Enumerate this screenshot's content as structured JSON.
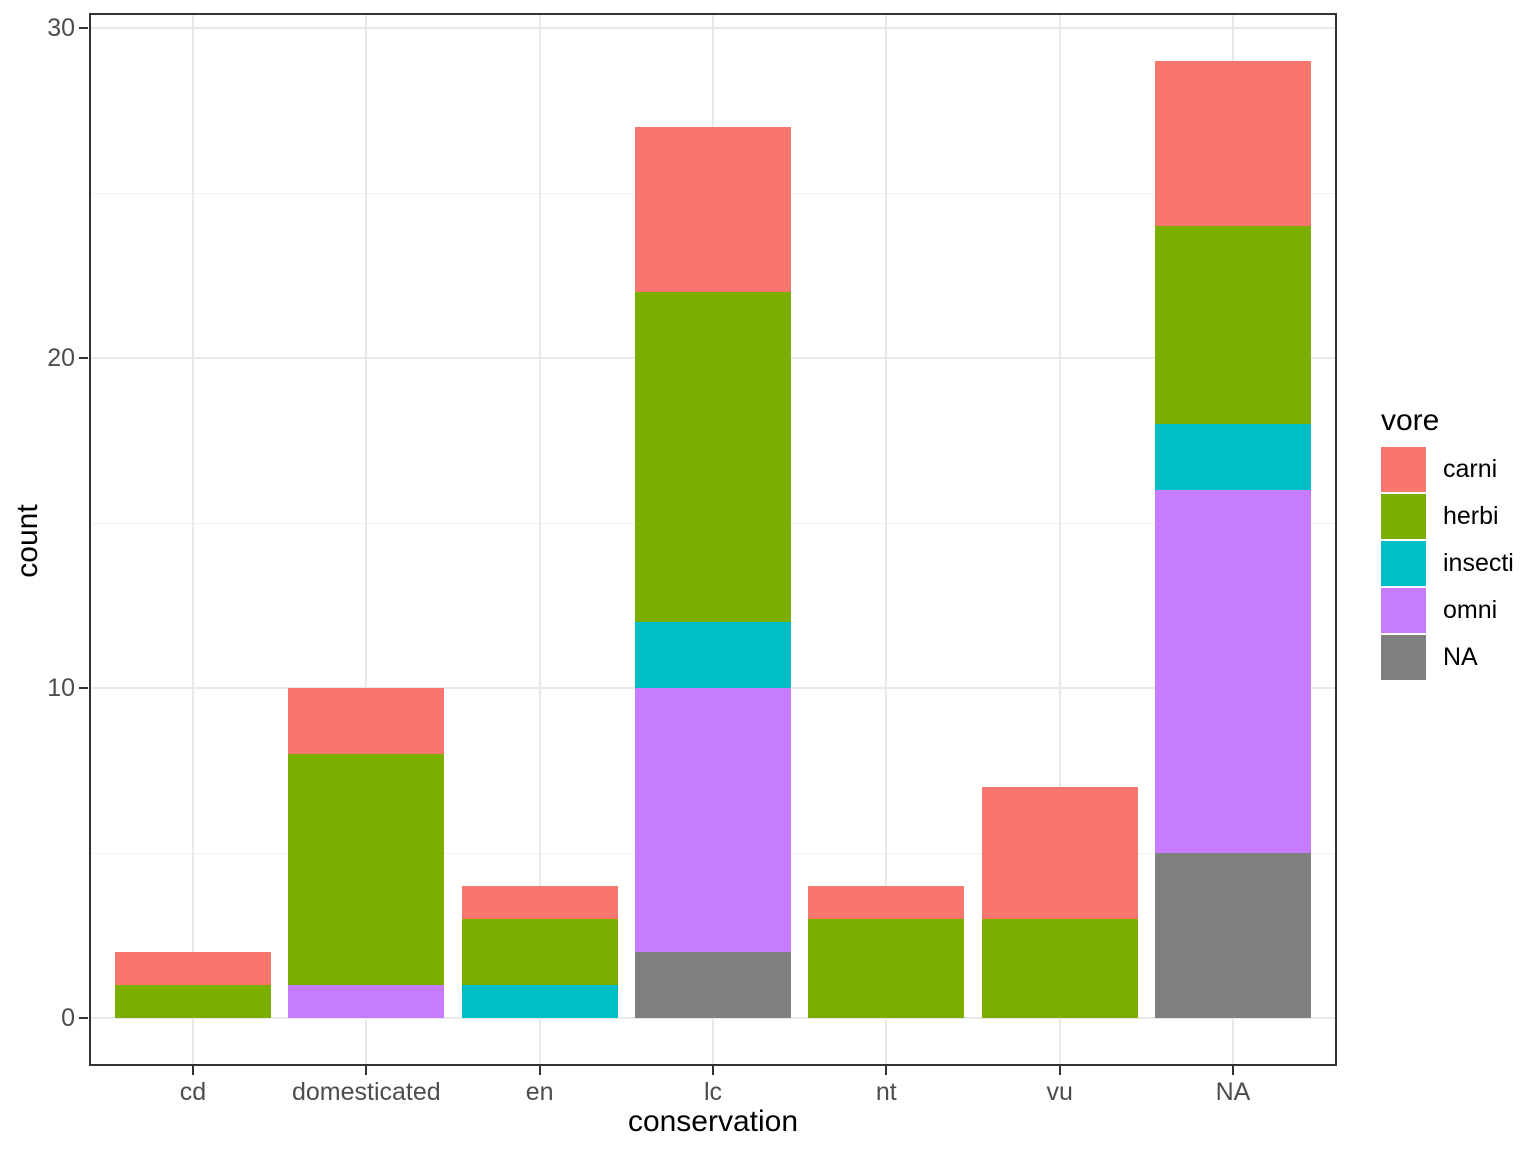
{
  "chart_data": {
    "type": "bar",
    "stacked": true,
    "categories": [
      "cd",
      "domesticated",
      "en",
      "lc",
      "nt",
      "vu",
      "NA"
    ],
    "series": [
      {
        "name": "carni",
        "color": "#F8766D",
        "values": [
          1,
          2,
          1,
          5,
          1,
          4,
          5
        ]
      },
      {
        "name": "herbi",
        "color": "#7CAE00",
        "values": [
          1,
          7,
          2,
          10,
          3,
          3,
          6
        ]
      },
      {
        "name": "insecti",
        "color": "#00BFC4",
        "values": [
          0,
          0,
          1,
          2,
          0,
          0,
          2
        ]
      },
      {
        "name": "omni",
        "color": "#C77CFF",
        "values": [
          0,
          1,
          0,
          8,
          0,
          0,
          11
        ]
      },
      {
        "name": "NA",
        "color": "#7F7F7F",
        "values": [
          0,
          0,
          0,
          2,
          0,
          0,
          5
        ]
      }
    ],
    "stack_order_bottom_to_top": [
      "NA",
      "omni",
      "insecti",
      "herbi",
      "carni"
    ],
    "totals": [
      2,
      10,
      4,
      27,
      4,
      7,
      29
    ],
    "xlabel": "conservation",
    "ylabel": "count",
    "y_axis": {
      "ticks": [
        0,
        10,
        20,
        30
      ],
      "minor_ticks": [
        5,
        15,
        25
      ],
      "limits": [
        -1.45,
        30.45
      ]
    },
    "x_axis": {
      "tick_labels": [
        "cd",
        "domesticated",
        "en",
        "lc",
        "nt",
        "vu",
        "NA"
      ]
    },
    "legend": {
      "title": "vore",
      "position": "right",
      "labels": [
        "carni",
        "herbi",
        "insecti",
        "omni",
        "NA"
      ]
    },
    "grid": true,
    "theme": {
      "panel_background": "#FFFFFF",
      "panel_border": "#333333",
      "grid_major": "#E9E9E9",
      "grid_minor": "#F1F1F1",
      "tick_label_color": "#4D4D4D",
      "title_color": "#000000"
    }
  }
}
